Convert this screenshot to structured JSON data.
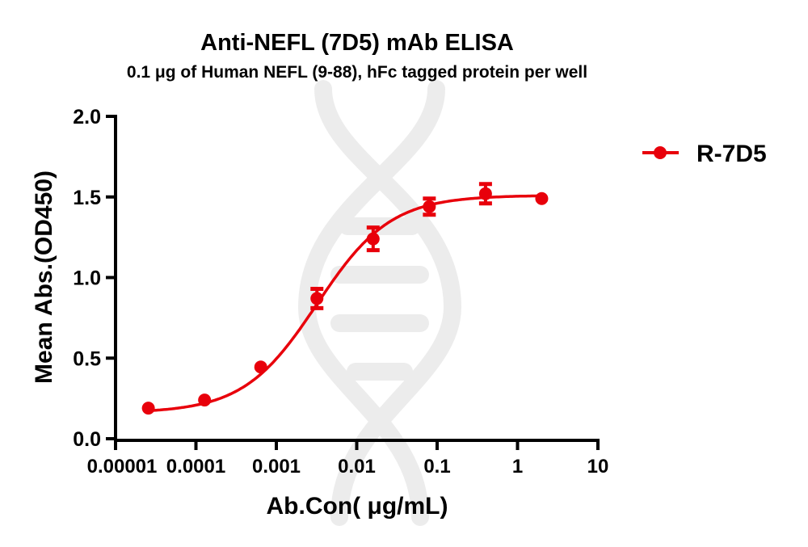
{
  "chart_data": {
    "type": "scatter",
    "title": "Anti-NEFL (7D5) mAb ELISA",
    "subtitle": "0.1 μg of Human NEFL (9-88), hFc tagged protein per well",
    "xlabel": "Ab.Con( μg/mL)",
    "ylabel": "Mean Abs.(OD450)",
    "xscale": "log",
    "xlim": [
      1e-05,
      10
    ],
    "ylim": [
      0,
      2.0
    ],
    "x_ticks": [
      1e-05,
      0.0001,
      0.001,
      0.01,
      0.1,
      1,
      10
    ],
    "x_tick_labels": [
      "0.00001",
      "0.0001",
      "0.001",
      "0.01",
      "0.1",
      "1",
      "10"
    ],
    "y_ticks": [
      0,
      0.5,
      1.0,
      1.5,
      2.0
    ],
    "y_tick_labels": [
      "0.0",
      "0.5",
      "1.0",
      "1.5",
      "2.0"
    ],
    "grid": false,
    "legend_position": "right",
    "series": [
      {
        "name": "R-7D5",
        "color": "#e8000b",
        "x": [
          2.56e-05,
          0.000128,
          0.00064,
          0.0032,
          0.016,
          0.08,
          0.4,
          2
        ],
        "y": [
          0.19,
          0.24,
          0.445,
          0.87,
          1.24,
          1.44,
          1.52,
          1.49
        ],
        "error": [
          0,
          0,
          0,
          0.06,
          0.07,
          0.05,
          0.06,
          0
        ],
        "fit": {
          "model": "4PL",
          "bottom": 0.16,
          "top": 1.51,
          "ec50": 0.0032,
          "hill": 0.95
        }
      }
    ]
  }
}
